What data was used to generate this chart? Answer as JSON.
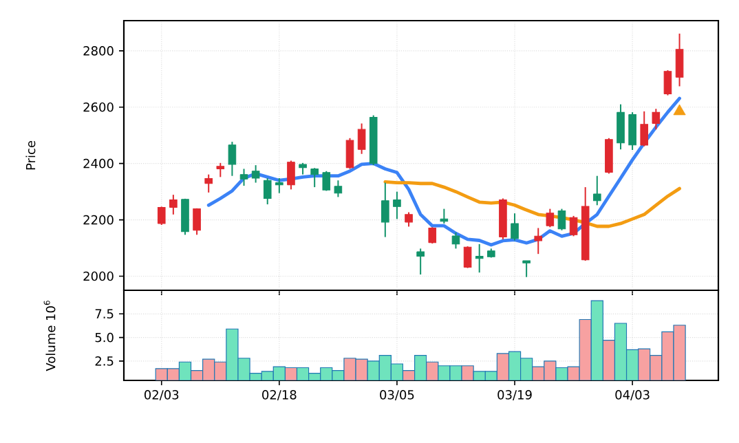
{
  "chart_data": [
    {
      "type": "candlestick",
      "ylabel": "Price",
      "tick_labels": "y",
      "grid": true,
      "categories": [
        null,
        null,
        null,
        null,
        null,
        null,
        null,
        null,
        null,
        null,
        null,
        null,
        null,
        null,
        null,
        null,
        null,
        null,
        null,
        null,
        null,
        null,
        null,
        null,
        null,
        null,
        null,
        null,
        null,
        null,
        null,
        null,
        null,
        null,
        null,
        null,
        null,
        null,
        null,
        null,
        null,
        null,
        null,
        null,
        null
      ],
      "ylim": [
        1950,
        2907
      ],
      "yticks": [
        2000,
        2200,
        2400,
        2600,
        2800
      ],
      "ohlc": [
        [
          2187,
          2247,
          2182,
          2244
        ],
        [
          2244,
          2289,
          2219,
          2271
        ],
        [
          2273,
          2275,
          2147,
          2158
        ],
        [
          2163,
          2241,
          2147,
          2239
        ],
        [
          2329,
          2361,
          2297,
          2347
        ],
        [
          2381,
          2402,
          2352,
          2390
        ],
        [
          2466,
          2477,
          2356,
          2397
        ],
        [
          2361,
          2381,
          2321,
          2345
        ],
        [
          2373,
          2394,
          2332,
          2348
        ],
        [
          2340,
          2348,
          2255,
          2276
        ],
        [
          2332,
          2348,
          2295,
          2324
        ],
        [
          2324,
          2410,
          2308,
          2405
        ],
        [
          2397,
          2402,
          2361,
          2385
        ],
        [
          2381,
          2384,
          2316,
          2361
        ],
        [
          2368,
          2373,
          2303,
          2306
        ],
        [
          2319,
          2340,
          2281,
          2295
        ],
        [
          2385,
          2490,
          2381,
          2482
        ],
        [
          2450,
          2542,
          2434,
          2521
        ],
        [
          2564,
          2571,
          2394,
          2400
        ],
        [
          2268,
          2332,
          2139,
          2192
        ],
        [
          2271,
          2300,
          2203,
          2247
        ],
        [
          2192,
          2227,
          2176,
          2219
        ],
        [
          2087,
          2098,
          2006,
          2071
        ],
        [
          2119,
          2174,
          2116,
          2171
        ],
        [
          2203,
          2239,
          2187,
          2195
        ],
        [
          2143,
          2155,
          2098,
          2114
        ],
        [
          2032,
          2106,
          2029,
          2103
        ],
        [
          2071,
          2114,
          2013,
          2063
        ],
        [
          2090,
          2098,
          2066,
          2069
        ],
        [
          2139,
          2276,
          2131,
          2271
        ],
        [
          2187,
          2223,
          2127,
          2134
        ],
        [
          2055,
          2055,
          1997,
          2047
        ],
        [
          2126,
          2171,
          2079,
          2142
        ],
        [
          2179,
          2239,
          2174,
          2224
        ],
        [
          2232,
          2239,
          2163,
          2168
        ],
        [
          2147,
          2214,
          2142,
          2208
        ],
        [
          2058,
          2316,
          2055,
          2248
        ],
        [
          2292,
          2356,
          2252,
          2268
        ],
        [
          2369,
          2490,
          2364,
          2485
        ],
        [
          2582,
          2610,
          2450,
          2473
        ],
        [
          2574,
          2582,
          2448,
          2466
        ],
        [
          2465,
          2585,
          2461,
          2539
        ],
        [
          2542,
          2594,
          2521,
          2582
        ],
        [
          2647,
          2731,
          2642,
          2727
        ],
        [
          2706,
          2861,
          2674,
          2805
        ]
      ],
      "colors": [
        "#e0282e",
        "#e0282e",
        "#12936a",
        "#e0282e",
        "#e0282e",
        "#e0282e",
        "#12936a",
        "#12936a",
        "#12936a",
        "#12936a",
        "#12936a",
        "#e0282e",
        "#12936a",
        "#12936a",
        "#12936a",
        "#12936a",
        "#e0282e",
        "#e0282e",
        "#12936a",
        "#12936a",
        "#12936a",
        "#e0282e",
        "#12936a",
        "#e0282e",
        "#12936a",
        "#12936a",
        "#e0282e",
        "#12936a",
        "#12936a",
        "#e0282e",
        "#12936a",
        "#12936a",
        "#e0282e",
        "#e0282e",
        "#12936a",
        "#e0282e",
        "#e0282e",
        "#12936a",
        "#e0282e",
        "#12936a",
        "#12936a",
        "#e0282e",
        "#e0282e",
        "#e0282e",
        "#e0282e"
      ],
      "series": [
        {
          "type": "line",
          "color": "#3b82f6",
          "marker": "none",
          "values": [
            null,
            null,
            null,
            null,
            2252,
            2276,
            2303,
            2348,
            2364,
            2352,
            2340,
            2345,
            2352,
            2356,
            2356,
            2356,
            2373,
            2397,
            2400,
            2381,
            2368,
            2308,
            2219,
            2179,
            2179,
            2152,
            2131,
            2127,
            2111,
            2126,
            2129,
            2118,
            2131,
            2161,
            2142,
            2152,
            2187,
            2219,
            2284,
            2348,
            2413,
            2473,
            2529,
            2582,
            2631
          ]
        },
        {
          "type": "line",
          "color": "#f39c12",
          "marker": "none",
          "values": [
            null,
            null,
            null,
            null,
            null,
            null,
            null,
            null,
            null,
            null,
            null,
            null,
            null,
            null,
            null,
            null,
            null,
            null,
            null,
            2335,
            2332,
            2332,
            2329,
            2329,
            2316,
            2300,
            2281,
            2263,
            2260,
            2263,
            2252,
            2235,
            2219,
            2214,
            2208,
            2200,
            2190,
            2177,
            2177,
            2187,
            2203,
            2219,
            2252,
            2284,
            2311
          ]
        },
        {
          "type": "scatter",
          "color": "#f39c12",
          "marker": "triangle",
          "values": [
            null,
            null,
            null,
            null,
            null,
            null,
            null,
            null,
            null,
            null,
            null,
            null,
            null,
            null,
            null,
            null,
            null,
            null,
            null,
            null,
            null,
            null,
            null,
            null,
            null,
            null,
            null,
            null,
            null,
            null,
            null,
            null,
            null,
            null,
            null,
            null,
            null,
            null,
            null,
            null,
            null,
            null,
            null,
            null,
            2585
          ]
        }
      ]
    },
    {
      "type": "bar",
      "ylabel": "Volume  10$^{6}$",
      "grid": true,
      "categories": [
        "02/03",
        null,
        null,
        null,
        null,
        null,
        null,
        null,
        null,
        null,
        "02/18",
        null,
        null,
        null,
        null,
        null,
        null,
        null,
        null,
        null,
        "03/05",
        null,
        null,
        null,
        null,
        null,
        null,
        null,
        null,
        null,
        "03/19",
        null,
        null,
        null,
        null,
        null,
        null,
        null,
        null,
        null,
        "04/03",
        null,
        null,
        null,
        null
      ],
      "ylim": [
        0.45,
        10.0
      ],
      "yticks": [
        2.5,
        {
          "value": 5,
          "label": "5.0"
        },
        7.5
      ],
      "values": [
        1.7,
        1.7,
        2.4,
        1.5,
        2.7,
        2.4,
        5.9,
        2.8,
        1.2,
        1.4,
        1.9,
        1.8,
        1.8,
        1.2,
        1.8,
        1.5,
        2.8,
        2.7,
        2.5,
        3.1,
        2.2,
        1.5,
        3.1,
        2.4,
        2.0,
        2.0,
        2.0,
        1.4,
        1.4,
        3.3,
        3.5,
        2.8,
        1.9,
        2.5,
        1.8,
        1.9,
        6.9,
        8.9,
        4.7,
        6.5,
        3.7,
        3.8,
        3.1,
        5.6,
        6.3
      ],
      "colors": [
        "#f7a1a1",
        "#f7a1a1",
        "#6fe3bd",
        "#f7a1a1",
        "#f7a1a1",
        "#f7a1a1",
        "#6fe3bd",
        "#6fe3bd",
        "#6fe3bd",
        "#6fe3bd",
        "#6fe3bd",
        "#f7a1a1",
        "#6fe3bd",
        "#6fe3bd",
        "#6fe3bd",
        "#6fe3bd",
        "#f7a1a1",
        "#f7a1a1",
        "#6fe3bd",
        "#6fe3bd",
        "#6fe3bd",
        "#f7a1a1",
        "#6fe3bd",
        "#f7a1a1",
        "#6fe3bd",
        "#6fe3bd",
        "#f7a1a1",
        "#6fe3bd",
        "#6fe3bd",
        "#f7a1a1",
        "#6fe3bd",
        "#6fe3bd",
        "#f7a1a1",
        "#f7a1a1",
        "#6fe3bd",
        "#f7a1a1",
        "#f7a1a1",
        "#6fe3bd",
        "#f7a1a1",
        "#6fe3bd",
        "#6fe3bd",
        "#f7a1a1",
        "#f7a1a1",
        "#f7a1a1",
        "#f7a1a1"
      ]
    }
  ]
}
